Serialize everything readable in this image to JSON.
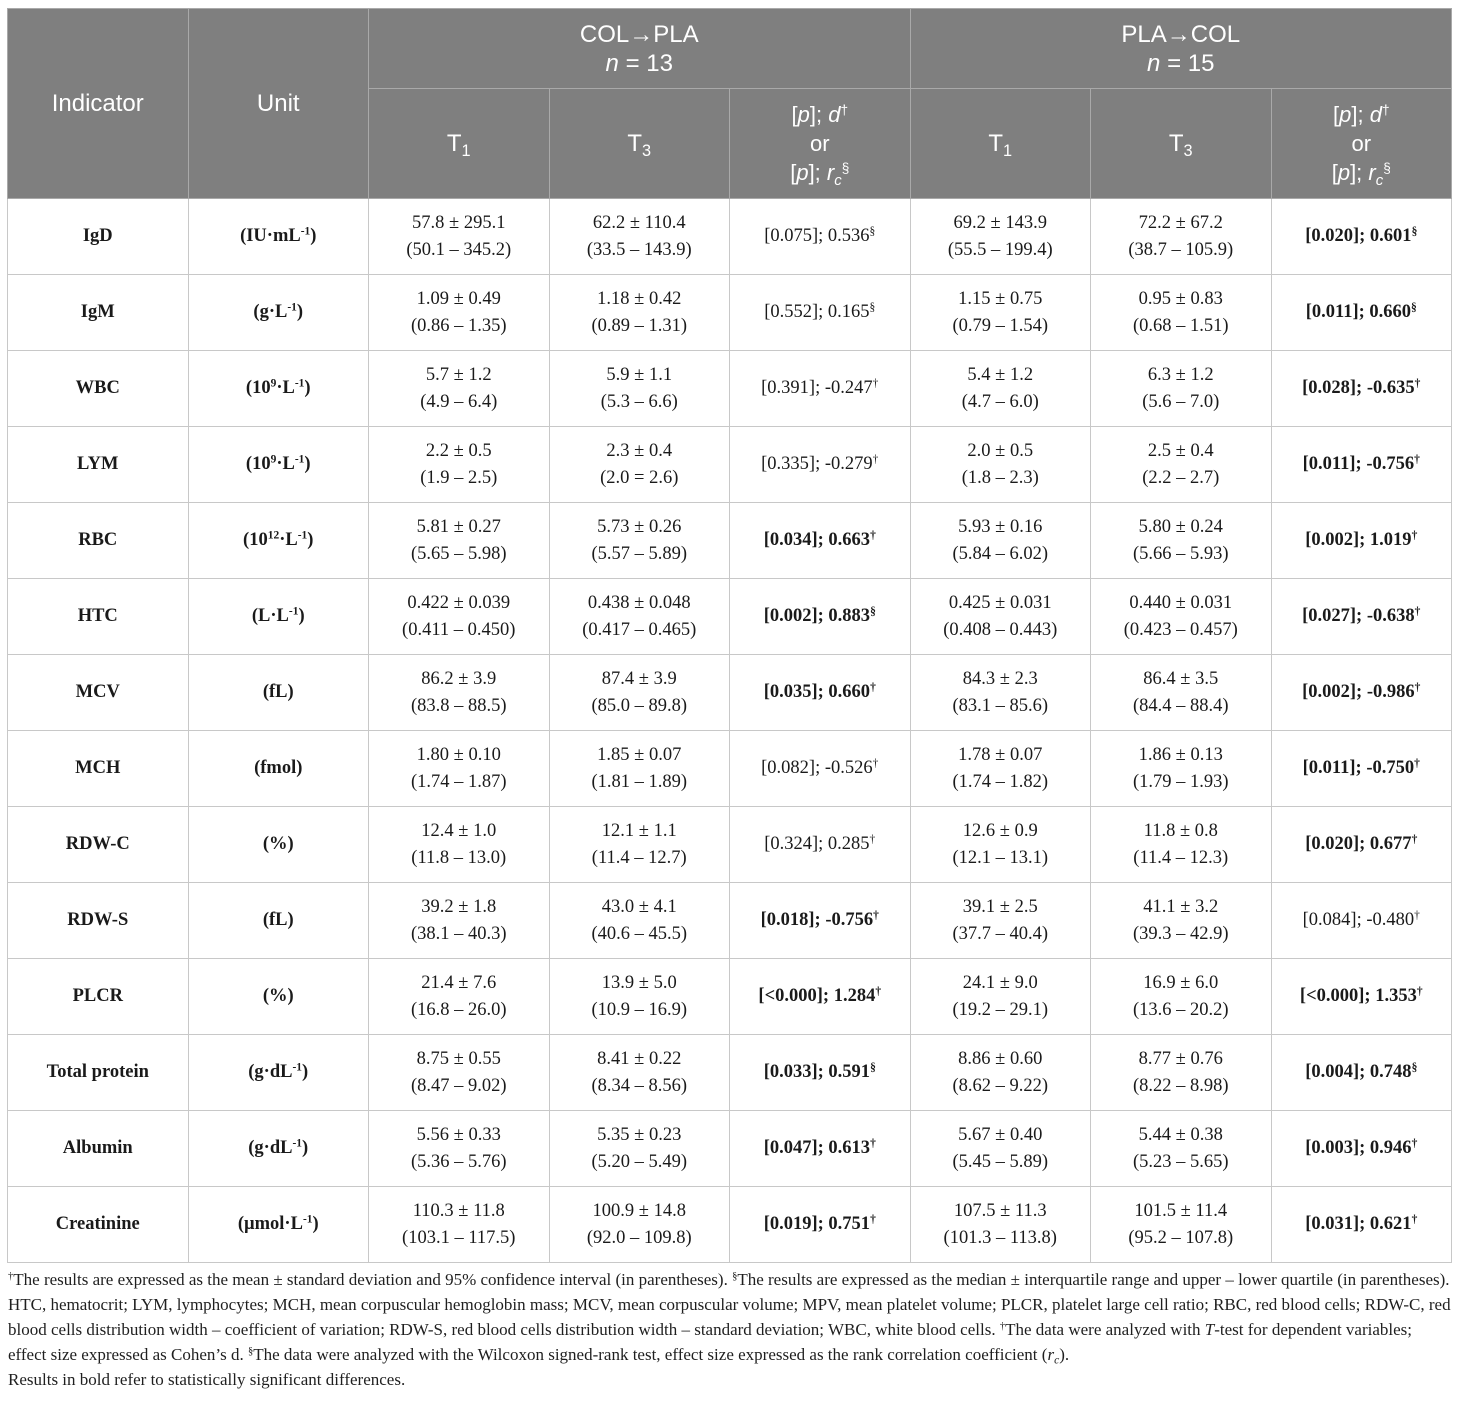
{
  "header": {
    "indicator": "Indicator",
    "unit": "Unit",
    "groups": [
      {
        "name": "COL→PLA",
        "n": [
          {
            "t": "n",
            "i": true
          },
          {
            "t": " = 13"
          }
        ],
        "t1": [
          {
            "t": "T"
          },
          {
            "t": "1",
            "sub": true
          }
        ],
        "t3": [
          {
            "t": "T"
          },
          {
            "t": "3",
            "sub": true
          }
        ],
        "test": [
          [
            {
              "t": "["
            },
            {
              "t": "p",
              "i": true
            },
            {
              "t": "]; "
            },
            {
              "t": "d",
              "i": true
            },
            {
              "t": "†",
              "sup": true
            }
          ],
          [
            {
              "t": "or"
            }
          ],
          [
            {
              "t": "["
            },
            {
              "t": "p",
              "i": true
            },
            {
              "t": "]; "
            },
            {
              "t": "r",
              "i": true
            },
            {
              "t": "c",
              "i": true,
              "sub": true
            },
            {
              "t": "§",
              "sup": true
            }
          ]
        ]
      },
      {
        "name": "PLA→COL",
        "n": [
          {
            "t": "n",
            "i": true
          },
          {
            "t": " = 15"
          }
        ],
        "t1": [
          {
            "t": "T"
          },
          {
            "t": "1",
            "sub": true
          }
        ],
        "t3": [
          {
            "t": "T"
          },
          {
            "t": "3",
            "sub": true
          }
        ],
        "test": [
          [
            {
              "t": "["
            },
            {
              "t": "p",
              "i": true
            },
            {
              "t": "]; "
            },
            {
              "t": "d",
              "i": true
            },
            {
              "t": "†",
              "sup": true
            }
          ],
          [
            {
              "t": "or"
            }
          ],
          [
            {
              "t": "["
            },
            {
              "t": "p",
              "i": true
            },
            {
              "t": "]; "
            },
            {
              "t": "r",
              "i": true
            },
            {
              "t": "c",
              "i": true,
              "sub": true
            },
            {
              "t": "§",
              "sup": true
            }
          ]
        ]
      }
    ]
  },
  "rows": [
    {
      "indicator": "IgD",
      "unit": [
        {
          "t": "(IU·mL"
        },
        {
          "t": "-1",
          "sup": true
        },
        {
          "t": ")"
        }
      ],
      "col_pla": {
        "t1": {
          "value": "57.8 ± 295.1",
          "range": "(50.1 – 345.2)"
        },
        "t3": {
          "value": "62.2 ± 110.4",
          "range": "(33.5 – 143.9)"
        },
        "test": {
          "text": "[0.075]; 0.536",
          "mark": "§",
          "bold": false
        }
      },
      "pla_col": {
        "t1": {
          "value": "69.2 ± 143.9",
          "range": "(55.5 – 199.4)"
        },
        "t3": {
          "value": "72.2 ± 67.2",
          "range": "(38.7 – 105.9)"
        },
        "test": {
          "text": "[0.020]; 0.601",
          "mark": "§",
          "bold": true
        }
      }
    },
    {
      "indicator": "IgM",
      "unit": [
        {
          "t": "(g·L"
        },
        {
          "t": "-1",
          "sup": true
        },
        {
          "t": ")"
        }
      ],
      "col_pla": {
        "t1": {
          "value": "1.09 ± 0.49",
          "range": "(0.86 – 1.35)"
        },
        "t3": {
          "value": "1.18 ± 0.42",
          "range": "(0.89 – 1.31)"
        },
        "test": {
          "text": "[0.552]; 0.165",
          "mark": "§",
          "bold": false
        }
      },
      "pla_col": {
        "t1": {
          "value": "1.15 ± 0.75",
          "range": "(0.79 – 1.54)"
        },
        "t3": {
          "value": "0.95 ± 0.83",
          "range": "(0.68 – 1.51)"
        },
        "test": {
          "text": "[0.011]; 0.660",
          "mark": "§",
          "bold": true
        }
      }
    },
    {
      "indicator": "WBC",
      "unit": [
        {
          "t": "(10"
        },
        {
          "t": "9",
          "sup": true
        },
        {
          "t": "·L"
        },
        {
          "t": "-1",
          "sup": true
        },
        {
          "t": ")"
        }
      ],
      "col_pla": {
        "t1": {
          "value": "5.7 ± 1.2",
          "range": "(4.9 – 6.4)"
        },
        "t3": {
          "value": "5.9 ± 1.1",
          "range": "(5.3 – 6.6)"
        },
        "test": {
          "text": "[0.391]; -0.247",
          "mark": "†",
          "bold": false
        }
      },
      "pla_col": {
        "t1": {
          "value": "5.4 ± 1.2",
          "range": "(4.7 – 6.0)"
        },
        "t3": {
          "value": "6.3 ± 1.2",
          "range": "(5.6 – 7.0)"
        },
        "test": {
          "text": "[0.028]; -0.635",
          "mark": "†",
          "bold": true
        }
      }
    },
    {
      "indicator": "LYM",
      "unit": [
        {
          "t": "(10"
        },
        {
          "t": "9",
          "sup": true
        },
        {
          "t": "·L"
        },
        {
          "t": "-1",
          "sup": true
        },
        {
          "t": ")"
        }
      ],
      "col_pla": {
        "t1": {
          "value": "2.2 ± 0.5",
          "range": "(1.9 – 2.5)"
        },
        "t3": {
          "value": "2.3 ± 0.4",
          "range": "(2.0 = 2.6)"
        },
        "test": {
          "text": "[0.335]; -0.279",
          "mark": "†",
          "bold": false
        }
      },
      "pla_col": {
        "t1": {
          "value": "2.0 ± 0.5",
          "range": "(1.8 – 2.3)"
        },
        "t3": {
          "value": "2.5 ± 0.4",
          "range": "(2.2 – 2.7)"
        },
        "test": {
          "text": "[0.011]; -0.756",
          "mark": "†",
          "bold": true
        }
      }
    },
    {
      "indicator": "RBC",
      "unit": [
        {
          "t": "(10"
        },
        {
          "t": "12",
          "sup": true
        },
        {
          "t": "·L"
        },
        {
          "t": "-1",
          "sup": true
        },
        {
          "t": ")"
        }
      ],
      "col_pla": {
        "t1": {
          "value": "5.81 ± 0.27",
          "range": "(5.65 – 5.98)"
        },
        "t3": {
          "value": "5.73 ± 0.26",
          "range": "(5.57 – 5.89)"
        },
        "test": {
          "text": "[0.034]; 0.663",
          "mark": "†",
          "bold": true
        }
      },
      "pla_col": {
        "t1": {
          "value": "5.93 ± 0.16",
          "range": "(5.84 – 6.02)"
        },
        "t3": {
          "value": "5.80 ± 0.24",
          "range": "(5.66 – 5.93)"
        },
        "test": {
          "text": "[0.002]; 1.019",
          "mark": "†",
          "bold": true
        }
      }
    },
    {
      "indicator": "HTC",
      "unit": [
        {
          "t": "(L·L"
        },
        {
          "t": "-1",
          "sup": true
        },
        {
          "t": ")"
        }
      ],
      "col_pla": {
        "t1": {
          "value": "0.422 ± 0.039",
          "range": "(0.411 – 0.450)"
        },
        "t3": {
          "value": "0.438 ± 0.048",
          "range": "(0.417 – 0.465)"
        },
        "test": {
          "text": "[0.002]; 0.883",
          "mark": "§",
          "bold": true
        }
      },
      "pla_col": {
        "t1": {
          "value": "0.425 ± 0.031",
          "range": "(0.408 – 0.443)"
        },
        "t3": {
          "value": "0.440 ± 0.031",
          "range": "(0.423 – 0.457)"
        },
        "test": {
          "text": "[0.027]; -0.638",
          "mark": "†",
          "bold": true
        }
      }
    },
    {
      "indicator": "MCV",
      "unit": [
        {
          "t": "(fL)"
        }
      ],
      "col_pla": {
        "t1": {
          "value": "86.2 ± 3.9",
          "range": "(83.8 – 88.5)"
        },
        "t3": {
          "value": "87.4 ± 3.9",
          "range": "(85.0 – 89.8)"
        },
        "test": {
          "text": "[0.035]; 0.660",
          "mark": "†",
          "bold": true
        }
      },
      "pla_col": {
        "t1": {
          "value": "84.3 ± 2.3",
          "range": "(83.1 – 85.6)"
        },
        "t3": {
          "value": "86.4 ± 3.5",
          "range": "(84.4 – 88.4)"
        },
        "test": {
          "text": "[0.002]; -0.986",
          "mark": "†",
          "bold": true
        }
      }
    },
    {
      "indicator": "MCH",
      "unit": [
        {
          "t": "(fmol)"
        }
      ],
      "col_pla": {
        "t1": {
          "value": "1.80 ± 0.10",
          "range": "(1.74 – 1.87)"
        },
        "t3": {
          "value": "1.85 ± 0.07",
          "range": "(1.81 – 1.89)"
        },
        "test": {
          "text": "[0.082]; -0.526",
          "mark": "†",
          "bold": false
        }
      },
      "pla_col": {
        "t1": {
          "value": "1.78 ± 0.07",
          "range": "(1.74 – 1.82)"
        },
        "t3": {
          "value": "1.86 ± 0.13",
          "range": "(1.79 – 1.93)"
        },
        "test": {
          "text": "[0.011]; -0.750",
          "mark": "†",
          "bold": true
        }
      }
    },
    {
      "indicator": "RDW-C",
      "unit": [
        {
          "t": "(%)"
        }
      ],
      "col_pla": {
        "t1": {
          "value": "12.4 ± 1.0",
          "range": "(11.8 – 13.0)"
        },
        "t3": {
          "value": "12.1 ± 1.1",
          "range": "(11.4 – 12.7)"
        },
        "test": {
          "text": "[0.324]; 0.285",
          "mark": "†",
          "bold": false
        }
      },
      "pla_col": {
        "t1": {
          "value": "12.6 ± 0.9",
          "range": "(12.1 – 13.1)"
        },
        "t3": {
          "value": "11.8 ± 0.8",
          "range": "(11.4 – 12.3)"
        },
        "test": {
          "text": "[0.020]; 0.677",
          "mark": "†",
          "bold": true
        }
      }
    },
    {
      "indicator": "RDW-S",
      "unit": [
        {
          "t": "(fL)"
        }
      ],
      "col_pla": {
        "t1": {
          "value": "39.2 ± 1.8",
          "range": "(38.1 – 40.3)"
        },
        "t3": {
          "value": "43.0 ± 4.1",
          "range": "(40.6 – 45.5)"
        },
        "test": {
          "text": "[0.018]; -0.756",
          "mark": "†",
          "bold": true
        }
      },
      "pla_col": {
        "t1": {
          "value": "39.1 ± 2.5",
          "range": "(37.7 – 40.4)"
        },
        "t3": {
          "value": "41.1 ± 3.2",
          "range": "(39.3 – 42.9)"
        },
        "test": {
          "text": "[0.084]; -0.480",
          "mark": "†",
          "bold": false
        }
      }
    },
    {
      "indicator": "PLCR",
      "unit": [
        {
          "t": "(%)"
        }
      ],
      "col_pla": {
        "t1": {
          "value": "21.4 ± 7.6",
          "range": "(16.8 – 26.0)"
        },
        "t3": {
          "value": "13.9 ± 5.0",
          "range": "(10.9 – 16.9)"
        },
        "test": {
          "text": "[<0.000]; 1.284",
          "mark": "†",
          "bold": true
        }
      },
      "pla_col": {
        "t1": {
          "value": "24.1 ± 9.0",
          "range": "(19.2 – 29.1)"
        },
        "t3": {
          "value": "16.9 ± 6.0",
          "range": "(13.6 – 20.2)"
        },
        "test": {
          "text": "[<0.000]; 1.353",
          "mark": "†",
          "bold": true
        }
      }
    },
    {
      "indicator": "Total protein",
      "unit": [
        {
          "t": "(g·dL"
        },
        {
          "t": "-1",
          "sup": true
        },
        {
          "t": ")"
        }
      ],
      "col_pla": {
        "t1": {
          "value": "8.75 ± 0.55",
          "range": "(8.47 – 9.02)"
        },
        "t3": {
          "value": "8.41 ± 0.22",
          "range": "(8.34 – 8.56)"
        },
        "test": {
          "text": "[0.033]; 0.591",
          "mark": "§",
          "bold": true
        }
      },
      "pla_col": {
        "t1": {
          "value": "8.86 ± 0.60",
          "range": "(8.62 – 9.22)"
        },
        "t3": {
          "value": "8.77 ± 0.76",
          "range": "(8.22 – 8.98)"
        },
        "test": {
          "text": "[0.004]; 0.748",
          "mark": "§",
          "bold": true
        }
      }
    },
    {
      "indicator": "Albumin",
      "unit": [
        {
          "t": "(g·dL"
        },
        {
          "t": "-1",
          "sup": true
        },
        {
          "t": ")"
        }
      ],
      "col_pla": {
        "t1": {
          "value": "5.56 ± 0.33",
          "range": "(5.36 – 5.76)"
        },
        "t3": {
          "value": "5.35 ± 0.23",
          "range": "(5.20 – 5.49)"
        },
        "test": {
          "text": "[0.047]; 0.613",
          "mark": "†",
          "bold": true
        }
      },
      "pla_col": {
        "t1": {
          "value": "5.67 ± 0.40",
          "range": "(5.45 – 5.89)"
        },
        "t3": {
          "value": "5.44 ± 0.38",
          "range": "(5.23 – 5.65)"
        },
        "test": {
          "text": "[0.003]; 0.946",
          "mark": "†",
          "bold": true
        }
      }
    },
    {
      "indicator": "Creatinine",
      "unit": [
        {
          "t": "(µmol·L"
        },
        {
          "t": "-1",
          "sup": true
        },
        {
          "t": ")"
        }
      ],
      "col_pla": {
        "t1": {
          "value": "110.3 ± 11.8",
          "range": "(103.1 – 117.5)"
        },
        "t3": {
          "value": "100.9 ± 14.8",
          "range": "(92.0 – 109.8)"
        },
        "test": {
          "text": "[0.019]; 0.751",
          "mark": "†",
          "bold": true
        }
      },
      "pla_col": {
        "t1": {
          "value": "107.5 ± 11.3",
          "range": "(101.3 – 113.8)"
        },
        "t3": {
          "value": "101.5 ± 11.4",
          "range": "(95.2 – 107.8)"
        },
        "test": {
          "text": "[0.031]; 0.621",
          "mark": "†",
          "bold": true
        }
      }
    }
  ],
  "footnotes": [
    [
      {
        "t": "†",
        "sup": true
      },
      {
        "t": "The results are expressed as the mean ± standard deviation and 95% confidence interval (in parentheses). "
      },
      {
        "t": "§",
        "sup": true
      },
      {
        "t": "The results are expressed as the median ± interquartile range and upper – lower quartile (in parentheses). HTC, hematocrit; LYM, lymphocytes; MCH, mean corpuscular hemoglobin mass; MCV, mean corpuscular volume; MPV, mean platelet volume; PLCR, platelet large cell ratio; RBC, red blood cells; RDW-C, red blood cells distribution width – coefficient of variation; RDW-S, red blood cells distribution width – standard deviation; WBC, white blood cells. "
      },
      {
        "t": "†",
        "sup": true
      },
      {
        "t": "The data were analyzed with "
      },
      {
        "t": "T",
        "i": true
      },
      {
        "t": "-test for dependent variables; effect size expressed as Cohen’s d. "
      },
      {
        "t": "§",
        "sup": true
      },
      {
        "t": "The data were analyzed with the Wilcoxon signed-rank test, effect size expressed as the rank correlation coefficient ("
      },
      {
        "t": "r",
        "i": true
      },
      {
        "t": "c",
        "i": true,
        "sub": true
      },
      {
        "t": ")."
      }
    ],
    [
      {
        "t": "Results in bold refer to statistically significant differences."
      }
    ]
  ]
}
